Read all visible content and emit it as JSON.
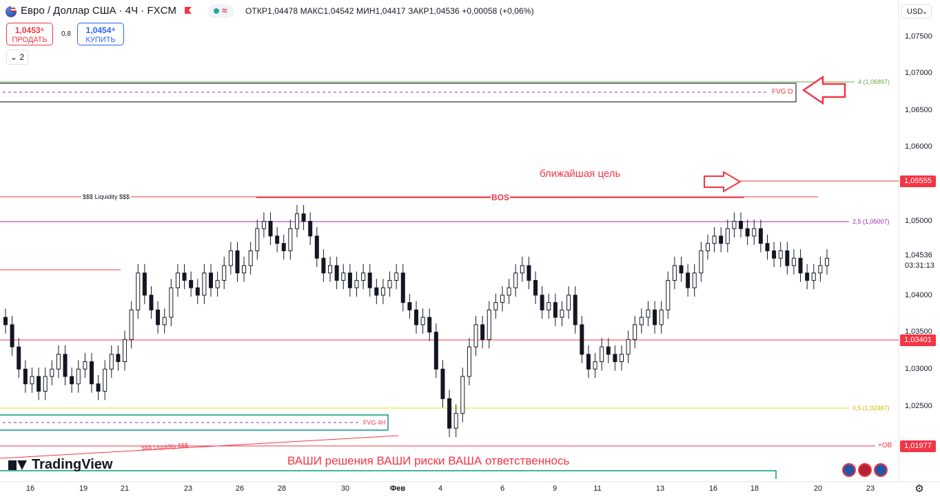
{
  "header": {
    "title": "Евро / Доллар США · 4Ч · FXCM",
    "ohlc": "ОТКР1,04478 МАКС1,04542 МИН1,04417 ЗАКР1,04536 +0,00058 (+0,06%)",
    "status_wave": "≈",
    "currency": "USD",
    "indicator_count": "2",
    "collapse_icon": "chevron-down-icon"
  },
  "trade": {
    "sell_price": "1,0453⁶",
    "sell_label": "ПРОДАТЬ",
    "spread": "0,8",
    "buy_price": "1,0454⁴",
    "buy_label": "КУПИТЬ"
  },
  "price_axis": {
    "ticks": [
      "1,07500",
      "1,07000",
      "1,06500",
      "1,06000",
      "1,05000",
      "1,04000",
      "1,03500",
      "1,03000",
      "1,02500"
    ],
    "tags": [
      {
        "label": "1,05555",
        "color": "#f23645"
      },
      {
        "label": "1,03401",
        "color": "#f23645"
      },
      {
        "label": "1,01977",
        "color": "#f23645"
      }
    ],
    "current_price": "1,04536",
    "countdown": "03:31:13"
  },
  "time_axis": {
    "labels": [
      "16",
      "19",
      "21",
      "23",
      "26",
      "28",
      "30",
      "Фев",
      "4",
      "6",
      "9",
      "11",
      "13",
      "16",
      "18",
      "20",
      "23"
    ]
  },
  "annotations": {
    "fvg_d": "FVG D",
    "fib_4": "4 (1,06897)",
    "target_text": "ближайшая цель",
    "liquidity_top": "$$$ Liquidity $$$",
    "bos": "BOS",
    "fib_25": "2,5 (1,05007)",
    "fib_05": "0,5 (1,02487)",
    "fvg_4h": "FVG 4H",
    "liquidity_bottom": "$$$ Liquidity $$$",
    "ob": "+OB",
    "disclaimer": "ВАШИ решения ВАШИ риски ВАША ответственнось"
  },
  "branding": {
    "logo_text": "TradingView"
  },
  "colors": {
    "accent_red": "#f23645",
    "accent_blue": "#2962ff",
    "green": "#22ab94",
    "purple": "#9c27b0",
    "yellow": "#f0e442",
    "fib_green": "#6aa84f"
  },
  "chart_data": {
    "type": "candlestick",
    "symbol": "EURUSD",
    "timeframe": "4H",
    "ylim": [
      1.0175,
      1.0775
    ],
    "price_levels": [
      1.06897,
      1.05555,
      1.05007,
      1.03401,
      1.02487,
      1.01977
    ],
    "close_series": [
      1.036,
      1.033,
      1.03,
      1.028,
      1.029,
      1.027,
      1.029,
      1.03,
      1.032,
      1.029,
      1.028,
      1.03,
      1.031,
      1.028,
      1.027,
      1.03,
      1.032,
      1.031,
      1.034,
      1.038,
      1.043,
      1.04,
      1.038,
      1.036,
      1.037,
      1.041,
      1.043,
      1.042,
      1.041,
      1.04,
      1.043,
      1.041,
      1.042,
      1.044,
      1.046,
      1.043,
      1.044,
      1.046,
      1.049,
      1.05,
      1.048,
      1.047,
      1.046,
      1.049,
      1.051,
      1.05,
      1.048,
      1.045,
      1.043,
      1.044,
      1.042,
      1.043,
      1.041,
      1.042,
      1.043,
      1.041,
      1.04,
      1.041,
      1.042,
      1.043,
      1.039,
      1.038,
      1.036,
      1.037,
      1.035,
      1.03,
      1.026,
      1.022,
      1.024,
      1.029,
      1.033,
      1.036,
      1.034,
      1.038,
      1.039,
      1.04,
      1.041,
      1.043,
      1.044,
      1.042,
      1.04,
      1.038,
      1.039,
      1.037,
      1.038,
      1.04,
      1.036,
      1.032,
      1.03,
      1.031,
      1.033,
      1.032,
      1.031,
      1.032,
      1.034,
      1.036,
      1.037,
      1.038,
      1.036,
      1.038,
      1.042,
      1.044,
      1.043,
      1.041,
      1.043,
      1.046,
      1.047,
      1.048,
      1.047,
      1.049,
      1.05,
      1.049,
      1.048,
      1.049,
      1.047,
      1.046,
      1.045,
      1.046,
      1.044,
      1.045,
      1.043,
      1.042,
      1.043,
      1.044,
      1.045
    ]
  }
}
